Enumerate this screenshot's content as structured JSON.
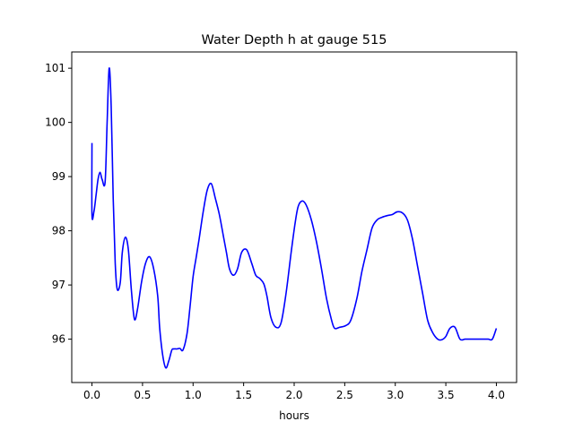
{
  "chart_data": {
    "type": "line",
    "title": "Water Depth h at gauge 515",
    "xlabel": "hours",
    "ylabel": "",
    "xlim": [
      -0.2,
      4.2
    ],
    "ylim": [
      95.2,
      101.3
    ],
    "xticks": [
      0.0,
      0.5,
      1.0,
      1.5,
      2.0,
      2.5,
      3.0,
      3.5,
      4.0
    ],
    "xtick_labels": [
      "0.0",
      "0.5",
      "1.0",
      "1.5",
      "2.0",
      "2.5",
      "3.0",
      "3.5",
      "4.0"
    ],
    "yticks": [
      96,
      97,
      98,
      99,
      100,
      101
    ],
    "ytick_labels": [
      "96",
      "97",
      "98",
      "99",
      "100",
      "101"
    ],
    "grid": false,
    "series": [
      {
        "color": "#0000ff",
        "x": [
          0.0,
          0.0,
          0.02,
          0.04,
          0.06,
          0.08,
          0.1,
          0.13,
          0.15,
          0.17,
          0.19,
          0.21,
          0.23,
          0.25,
          0.28,
          0.3,
          0.33,
          0.36,
          0.39,
          0.42,
          0.45,
          0.49,
          0.53,
          0.57,
          0.61,
          0.65,
          0.67,
          0.7,
          0.73,
          0.76,
          0.79,
          0.81,
          0.84,
          0.87,
          0.9,
          0.94,
          0.97,
          1.0,
          1.03,
          1.06,
          1.1,
          1.14,
          1.18,
          1.22,
          1.26,
          1.3,
          1.33,
          1.36,
          1.4,
          1.44,
          1.48,
          1.53,
          1.58,
          1.62,
          1.66,
          1.7,
          1.73,
          1.77,
          1.82,
          1.87,
          1.92,
          1.97,
          2.01,
          2.04,
          2.08,
          2.12,
          2.17,
          2.22,
          2.27,
          2.32,
          2.37,
          2.4,
          2.45,
          2.51,
          2.56,
          2.62,
          2.67,
          2.72,
          2.77,
          2.82,
          2.87,
          2.92,
          2.97,
          3.02,
          3.07,
          3.12,
          3.17,
          3.22,
          3.27,
          3.32,
          3.37,
          3.42,
          3.46,
          3.5,
          3.54,
          3.59,
          3.64,
          3.69,
          3.74,
          3.79,
          3.84,
          3.88,
          3.92,
          3.96,
          4.0
        ],
        "y": [
          99.62,
          98.3,
          98.36,
          98.65,
          98.95,
          99.08,
          98.95,
          98.9,
          100.0,
          101.0,
          100.3,
          98.6,
          97.4,
          96.92,
          97.05,
          97.6,
          97.88,
          97.65,
          96.9,
          96.37,
          96.55,
          97.05,
          97.4,
          97.52,
          97.3,
          96.8,
          96.2,
          95.7,
          95.47,
          95.6,
          95.8,
          95.82,
          95.82,
          95.83,
          95.8,
          96.1,
          96.6,
          97.15,
          97.5,
          97.85,
          98.35,
          98.75,
          98.87,
          98.6,
          98.3,
          97.9,
          97.6,
          97.3,
          97.18,
          97.3,
          97.6,
          97.65,
          97.4,
          97.18,
          97.12,
          97.02,
          96.8,
          96.4,
          96.22,
          96.3,
          96.85,
          97.6,
          98.15,
          98.45,
          98.55,
          98.47,
          98.2,
          97.8,
          97.3,
          96.75,
          96.35,
          96.2,
          96.22,
          96.25,
          96.35,
          96.75,
          97.25,
          97.65,
          98.05,
          98.2,
          98.25,
          98.28,
          98.3,
          98.35,
          98.33,
          98.2,
          97.85,
          97.35,
          96.85,
          96.35,
          96.12,
          96.0,
          95.99,
          96.05,
          96.2,
          96.22,
          96.0,
          96.0,
          96.0,
          96.0,
          96.0,
          96.0,
          96.0,
          96.0,
          96.2
        ]
      }
    ]
  }
}
